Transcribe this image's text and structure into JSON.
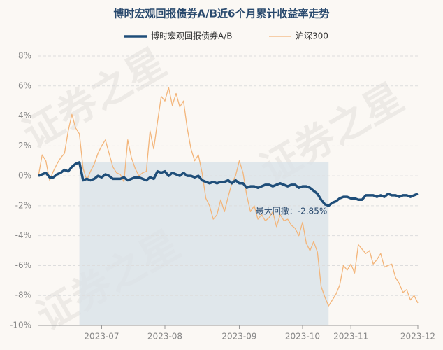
{
  "chart_data": {
    "type": "line",
    "title": "博时宏观回报债券A/B近6个月累计收益率走势",
    "watermark": "证券之星",
    "annotations": [
      {
        "text": "最大回撤：-2.85%"
      }
    ],
    "categories": [
      null,
      null,
      null,
      null,
      null,
      null,
      null,
      null,
      null,
      null,
      null,
      null,
      null,
      null,
      null,
      null,
      null,
      "2023-07",
      null,
      null,
      null,
      null,
      null,
      null,
      null,
      null,
      null,
      null,
      null,
      null,
      null,
      null,
      null,
      null,
      "2023-08",
      null,
      null,
      null,
      null,
      null,
      null,
      null,
      null,
      null,
      null,
      null,
      null,
      null,
      null,
      null,
      null,
      null,
      null,
      null,
      "2023-09",
      null,
      null,
      null,
      null,
      null,
      null,
      null,
      null,
      null,
      null,
      null,
      null,
      null,
      null,
      null,
      null,
      "2023-10",
      null,
      null,
      null,
      null,
      null,
      null,
      null,
      null,
      null,
      null,
      null,
      null,
      "2023-11",
      null,
      null,
      null,
      null,
      null,
      null,
      null,
      null,
      null,
      null,
      null,
      null,
      null,
      null,
      null,
      null,
      null,
      "2023-12"
    ],
    "series": [
      {
        "name": "博时宏观回报债券A/B",
        "color": "#1f4e79",
        "width": 3.5,
        "values": [
          0,
          0.1,
          0.2,
          -0.1,
          -0.1,
          0.1,
          0.2,
          0.4,
          0.3,
          0.6,
          0.8,
          0.9,
          -0.3,
          -0.2,
          -0.3,
          -0.2,
          0,
          -0.1,
          0.1,
          0,
          -0.2,
          -0.2,
          -0.2,
          -0.1,
          -0.3,
          -0.2,
          -0.1,
          -0.1,
          -0.2,
          -0.3,
          -0.1,
          -0.2,
          0.3,
          0.2,
          0.3,
          0,
          0.2,
          0.1,
          0,
          0.2,
          0,
          0,
          -0.1,
          0,
          -0.3,
          -0.4,
          -0.5,
          -0.4,
          -0.5,
          -0.4,
          -0.4,
          -0.3,
          -0.5,
          -0.3,
          -0.5,
          -0.5,
          -0.8,
          -0.7,
          -0.7,
          -0.8,
          -0.7,
          -0.6,
          -0.6,
          -0.7,
          -0.6,
          -0.5,
          -0.6,
          -0.7,
          -0.6,
          -0.6,
          -0.8,
          -0.7,
          -0.7,
          -0.8,
          -1.0,
          -1.2,
          -1.6,
          -1.9,
          -2.0,
          -1.8,
          -1.7,
          -1.5,
          -1.4,
          -1.4,
          -1.5,
          -1.5,
          -1.6,
          -1.6,
          -1.3,
          -1.3,
          -1.3,
          -1.4,
          -1.3,
          -1.4,
          -1.2,
          -1.3,
          -1.3,
          -1.4,
          -1.3,
          -1.3,
          -1.4,
          -1.3,
          -1.2
        ]
      },
      {
        "name": "沪深300",
        "color": "#f3b57a",
        "width": 1.3,
        "values": [
          0,
          1.4,
          1.0,
          -0.3,
          0.3,
          0.8,
          1.2,
          1.5,
          3.0,
          4.1,
          3.2,
          2.8,
          0.5,
          -0.3,
          0.3,
          0.8,
          1.5,
          2.0,
          2.4,
          1.5,
          0.6,
          0.2,
          0.1,
          -0.4,
          2.4,
          1.2,
          0.5,
          0,
          0.2,
          0.3,
          3.0,
          1.8,
          3.6,
          5.3,
          5.0,
          5.9,
          4.7,
          5.5,
          4.6,
          5.0,
          3.2,
          1.8,
          1.0,
          1.4,
          0.2,
          -1.5,
          -2.0,
          -2.9,
          -2.6,
          -1.6,
          -2.4,
          -1.4,
          -0.5,
          0,
          1.0,
          0.2,
          -1.3,
          -2.4,
          -2.0,
          -2.9,
          -2.6,
          -3.0,
          -2.8,
          -2.4,
          -3.4,
          -2.6,
          -3.0,
          -2.9,
          -3.3,
          -3.5,
          -4.0,
          -3.1,
          -4.5,
          -5.0,
          -4.4,
          -5.1,
          -7.4,
          -8.1,
          -8.7,
          -8.3,
          -7.9,
          -7.3,
          -6.0,
          -6.3,
          -5.9,
          -6.5,
          -4.6,
          -4.9,
          -5.2,
          -5.0,
          -5.9,
          -5.6,
          -5.2,
          -6.1,
          -6.0,
          -5.9,
          -6.8,
          -7.2,
          -7.8,
          -7.6,
          -8.3,
          -8.0,
          -8.5
        ]
      }
    ],
    "ylim": [
      -10,
      8
    ],
    "yticks": [
      {
        "value": -10,
        "label": "-10%"
      },
      {
        "value": -8,
        "label": "-8%"
      },
      {
        "value": -6,
        "label": "-6%"
      },
      {
        "value": -4,
        "label": "-4%"
      },
      {
        "value": -2,
        "label": "-2%"
      },
      {
        "value": 0,
        "label": "0%"
      },
      {
        "value": 2,
        "label": "2%"
      },
      {
        "value": 4,
        "label": "4%"
      },
      {
        "value": 6,
        "label": "6%"
      },
      {
        "value": 8,
        "label": "8%"
      }
    ],
    "grid": true,
    "legend": "top"
  }
}
